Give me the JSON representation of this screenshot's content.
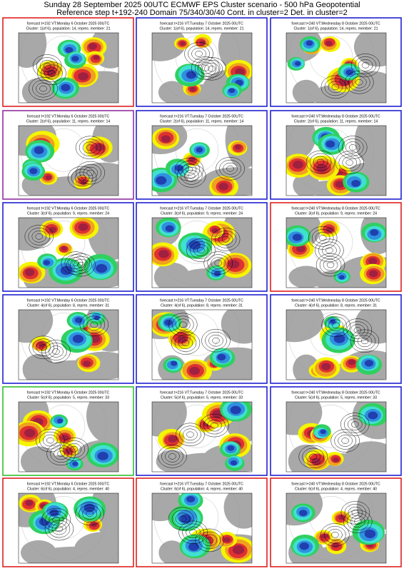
{
  "header": {
    "title": "Sunday 28 September 2025 00UTC ECMWF EPS Cluster scenario - 500 hPa Geopotential",
    "subtitle": "Reference step t+192-240 Domain 75/340/30/40 Cont. in cluster=2 Det. in cluster=2"
  },
  "panels": [
    {
      "line1": "forecast t+192 VT:Monday 6 October 2025 00UTC",
      "line2": "Cluster: 1(of 6), population: 14, repres. member: 21",
      "border": "#e02020"
    },
    {
      "line1": "forecast t+216 VT:Tuesday 7 October 2025 00UTC",
      "line2": "Cluster: 1(of 6), population: 14, repres. member: 21",
      "border": "#2020d0"
    },
    {
      "line1": "forecast t+240 VT:Wednesday 8 October 2025 00UTC",
      "line2": "Cluster: 1(of 6), population: 14, repres. member: 21",
      "border": "#2020d0"
    },
    {
      "line1": "forecast t+192 VT:Monday 6 October 2025 00UTC",
      "line2": "Cluster: 2(of 6), population: 11, repres. member: 14",
      "border": "#9030a0"
    },
    {
      "line1": "forecast t+216 VT:Tuesday 7 October 2025 00UTC",
      "line2": "Cluster: 2(of 6), population: 11, repres. member: 14",
      "border": "#2020d0"
    },
    {
      "line1": "forecast t+240 VT:Wednesday 8 October 2025 00UTC",
      "line2": "Cluster: 2(of 6), population: 11, repres. member: 14",
      "border": "#2020d0"
    },
    {
      "line1": "forecast t+192 VT:Monday 6 October 2025 00UTC",
      "line2": "Cluster: 3(of 6), population: 9, repres. member: 24",
      "border": "#2020d0"
    },
    {
      "line1": "forecast t+216 VT:Tuesday 7 October 2025 00UTC",
      "line2": "Cluster: 3(of 6), population: 9, repres. member: 24",
      "border": "#2020d0"
    },
    {
      "line1": "forecast t+240 VT:Wednesday 8 October 2025 00UTC",
      "line2": "Cluster: 3(of 6), population: 9, repres. member: 24",
      "border": "#e02020"
    },
    {
      "line1": "forecast t+192 VT:Monday 6 October 2025 00UTC",
      "line2": "Cluster: 4(of 6), population: 8, repres. member: 31",
      "border": "#2020d0"
    },
    {
      "line1": "forecast t+216 VT:Tuesday 7 October 2025 00UTC",
      "line2": "Cluster: 4(of 6), population: 8, repres. member: 31",
      "border": "#2020d0"
    },
    {
      "line1": "forecast t+240 VT:Wednesday 8 October 2025 00UTC",
      "line2": "Cluster: 4(of 6), population: 8, repres. member: 31",
      "border": "#2020d0"
    },
    {
      "line1": "forecast t+192 VT:Monday 6 October 2025 00UTC",
      "line2": "Cluster: 5(of 6), population: 5, repres. member: 33",
      "border": "#30c030"
    },
    {
      "line1": "forecast t+216 VT:Tuesday 7 October 2025 00UTC",
      "line2": "Cluster: 5(of 6), population: 5, repres. member: 33",
      "border": "#2020d0"
    },
    {
      "line1": "forecast t+240 VT:Wednesday 8 October 2025 00UTC",
      "line2": "Cluster: 5(of 6), population: 5, repres. member: 33",
      "border": "#2020d0"
    },
    {
      "line1": "forecast t+192 VT:Monday 6 October 2025 00UTC",
      "line2": "Cluster: 6(of 6), population: 4, repres. member: 40",
      "border": "#e02020"
    },
    {
      "line1": "forecast t+216 VT:Tuesday 7 October 2025 00UTC",
      "line2": "Cluster: 6(of 6), population: 4, repres. member: 40",
      "border": "#e02020"
    },
    {
      "line1": "forecast t+240 VT:Wednesday 8 October 2025 00UTC",
      "line2": "Cluster: 6(of 6), population: 4, repres. member: 40",
      "border": "#e02020"
    }
  ]
}
